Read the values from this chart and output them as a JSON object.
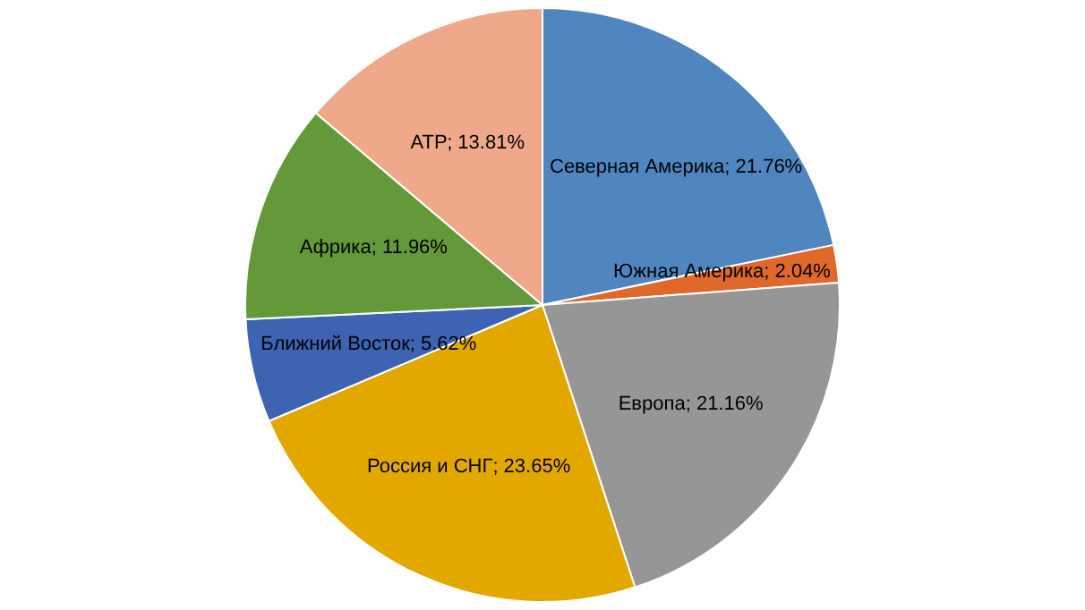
{
  "chart_data": {
    "type": "pie",
    "categories": [
      "Северная Америка",
      "Южная Америка",
      "Европа",
      "Россия и СНГ",
      "Ближний Восток",
      "Африка",
      "АТР"
    ],
    "values": [
      21.76,
      2.04,
      21.16,
      23.65,
      5.62,
      11.96,
      13.81
    ],
    "colors": [
      "#4f86c0",
      "#e0692a",
      "#969696",
      "#e3a800",
      "#3d63b2",
      "#64993a",
      "#efa98a"
    ],
    "value_labels": [
      "21.76%",
      "2.04%",
      "21.16%",
      "23.65%",
      "5.62%",
      "11.96%",
      "13.81%"
    ],
    "legend": false
  }
}
